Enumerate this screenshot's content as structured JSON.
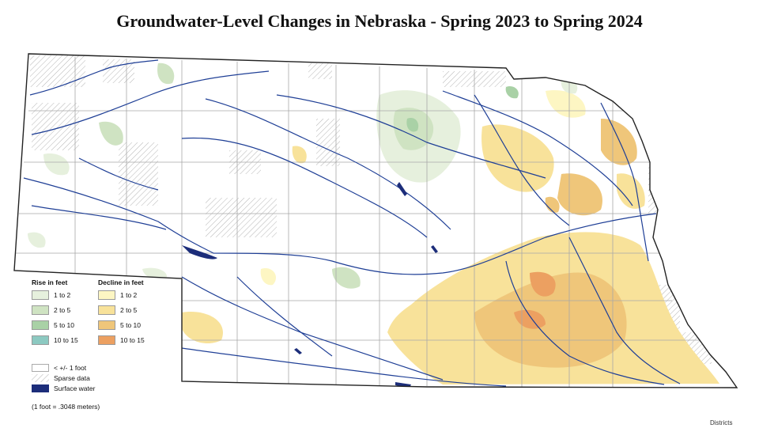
{
  "title": "Groundwater-Level Changes in Nebraska - Spring 2023 to Spring 2024",
  "legend": {
    "rise_heading": "Rise in feet",
    "decline_heading": "Decline in feet",
    "rise": [
      {
        "label": "1 to 2",
        "color": "#e6f0dd"
      },
      {
        "label": "2 to 5",
        "color": "#cfe3c2"
      },
      {
        "label": "5 to 10",
        "color": "#a9d1a6"
      },
      {
        "label": "10 to 15",
        "color": "#8cc9c1"
      }
    ],
    "decline": [
      {
        "label": "1 to 2",
        "color": "#fdf6c3"
      },
      {
        "label": "2 to 5",
        "color": "#f8e29a"
      },
      {
        "label": "5 to 10",
        "color": "#efc67a"
      },
      {
        "label": "10 to 15",
        "color": "#eca061"
      }
    ],
    "other": [
      {
        "label": "< +/- 1 foot",
        "kind": "white"
      },
      {
        "label": "Sparse data",
        "kind": "hatch"
      },
      {
        "label": "Surface water",
        "kind": "water",
        "color": "#1c2d7a"
      }
    ]
  },
  "conversion_note": "(1 foot = .3048 meters)",
  "credit": "Districts",
  "colors": {
    "river": "#1f3f96",
    "county_line": "#a8a8a8",
    "state_outline": "#222222"
  }
}
